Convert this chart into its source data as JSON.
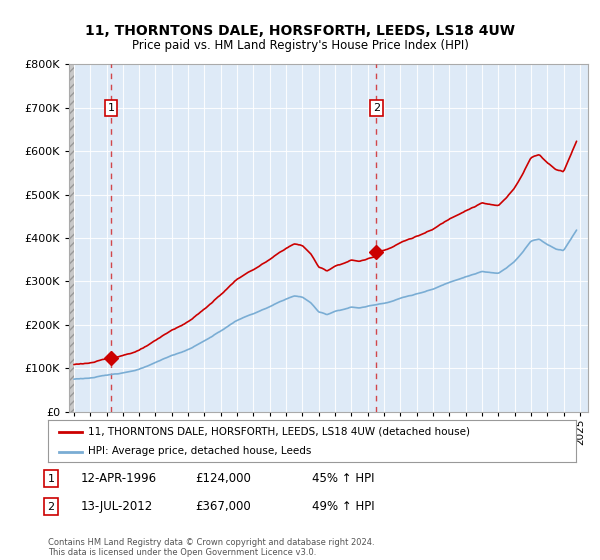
{
  "title1": "11, THORNTONS DALE, HORSFORTH, LEEDS, LS18 4UW",
  "title2": "Price paid vs. HM Land Registry's House Price Index (HPI)",
  "legend1": "11, THORNTONS DALE, HORSFORTH, LEEDS, LS18 4UW (detached house)",
  "legend2": "HPI: Average price, detached house, Leeds",
  "annotation1_date": "12-APR-1996",
  "annotation1_price": "£124,000",
  "annotation1_hpi": "45% ↑ HPI",
  "annotation2_date": "13-JUL-2012",
  "annotation2_price": "£367,000",
  "annotation2_hpi": "49% ↑ HPI",
  "footer": "Contains HM Land Registry data © Crown copyright and database right 2024.\nThis data is licensed under the Open Government Licence v3.0.",
  "red_color": "#cc0000",
  "blue_color": "#7aadd4",
  "grid_color": "#cccccc",
  "background_color": "#ffffff",
  "plot_bg_color": "#deeaf7",
  "ylim": [
    0,
    800000
  ],
  "sale1_x": 1996.28,
  "sale1_y": 124000,
  "sale2_x": 2012.53,
  "sale2_y": 367000,
  "xlim_left": 1993.7,
  "xlim_right": 2025.5
}
